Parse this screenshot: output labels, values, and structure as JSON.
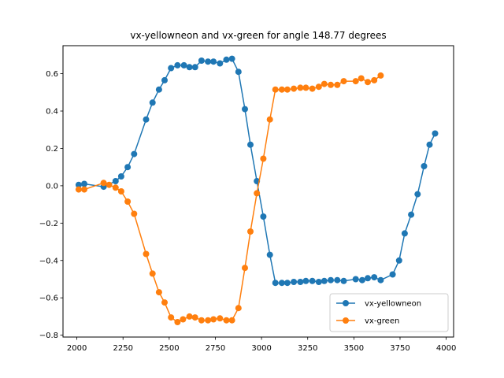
{
  "chart_data": {
    "type": "line",
    "title": "vx-yellowneon and vx-green for angle 148.77 degrees",
    "xlabel": "",
    "ylabel": "",
    "xlim": [
      1925,
      4040
    ],
    "ylim": [
      -0.81,
      0.75
    ],
    "xticks": [
      2000,
      2250,
      2500,
      2750,
      3000,
      3250,
      3500,
      3750,
      4000
    ],
    "yticks": [
      -0.8,
      -0.6,
      -0.4,
      -0.2,
      0.0,
      0.2,
      0.4,
      0.6
    ],
    "xtick_labels": [
      "2000",
      "2250",
      "2500",
      "2750",
      "3000",
      "3250",
      "3500",
      "3750",
      "4000"
    ],
    "ytick_labels": [
      "−0.8",
      "−0.6",
      "−0.4",
      "−0.2",
      "0.0",
      "0.2",
      "0.4",
      "0.6"
    ],
    "grid": false,
    "legend_position": "lower-right",
    "series": [
      {
        "name": "vx-yellowneon",
        "color": "#1f77b4",
        "x": [
          2010,
          2040,
          2145,
          2210,
          2240,
          2275,
          2310,
          2375,
          2410,
          2445,
          2475,
          2510,
          2545,
          2580,
          2610,
          2640,
          2675,
          2710,
          2740,
          2775,
          2810,
          2840,
          2875,
          2910,
          2940,
          2975,
          3010,
          3045,
          3075,
          3110,
          3140,
          3175,
          3210,
          3240,
          3275,
          3310,
          3340,
          3375,
          3410,
          3445,
          3510,
          3545,
          3575,
          3610,
          3645,
          3710,
          3745,
          3775,
          3810,
          3845,
          3880,
          3910,
          3940
        ],
        "y": [
          0.005,
          0.01,
          -0.005,
          0.025,
          0.05,
          0.1,
          0.17,
          0.355,
          0.445,
          0.515,
          0.565,
          0.63,
          0.645,
          0.645,
          0.635,
          0.635,
          0.67,
          0.665,
          0.665,
          0.655,
          0.675,
          0.68,
          0.61,
          0.41,
          0.22,
          0.025,
          -0.165,
          -0.37,
          -0.52,
          -0.52,
          -0.52,
          -0.515,
          -0.515,
          -0.51,
          -0.51,
          -0.515,
          -0.51,
          -0.505,
          -0.505,
          -0.51,
          -0.5,
          -0.505,
          -0.495,
          -0.49,
          -0.505,
          -0.475,
          -0.4,
          -0.255,
          -0.155,
          -0.045,
          0.105,
          0.22,
          0.28
        ]
      },
      {
        "name": "vx-green",
        "color": "#ff7f0e",
        "x": [
          2010,
          2040,
          2145,
          2175,
          2210,
          2240,
          2275,
          2310,
          2375,
          2410,
          2445,
          2475,
          2510,
          2545,
          2575,
          2610,
          2640,
          2675,
          2710,
          2740,
          2775,
          2810,
          2840,
          2875,
          2910,
          2940,
          2975,
          3010,
          3045,
          3075,
          3110,
          3140,
          3175,
          3210,
          3240,
          3275,
          3310,
          3340,
          3375,
          3410,
          3445,
          3510,
          3540,
          3575,
          3610,
          3645
        ],
        "y": [
          -0.02,
          -0.02,
          0.015,
          0.005,
          -0.01,
          -0.03,
          -0.085,
          -0.15,
          -0.365,
          -0.47,
          -0.57,
          -0.625,
          -0.705,
          -0.73,
          -0.715,
          -0.7,
          -0.705,
          -0.72,
          -0.72,
          -0.715,
          -0.71,
          -0.72,
          -0.72,
          -0.655,
          -0.44,
          -0.245,
          -0.04,
          0.145,
          0.355,
          0.515,
          0.515,
          0.515,
          0.52,
          0.525,
          0.525,
          0.52,
          0.53,
          0.545,
          0.54,
          0.54,
          0.56,
          0.56,
          0.575,
          0.555,
          0.565,
          0.59
        ]
      }
    ]
  }
}
